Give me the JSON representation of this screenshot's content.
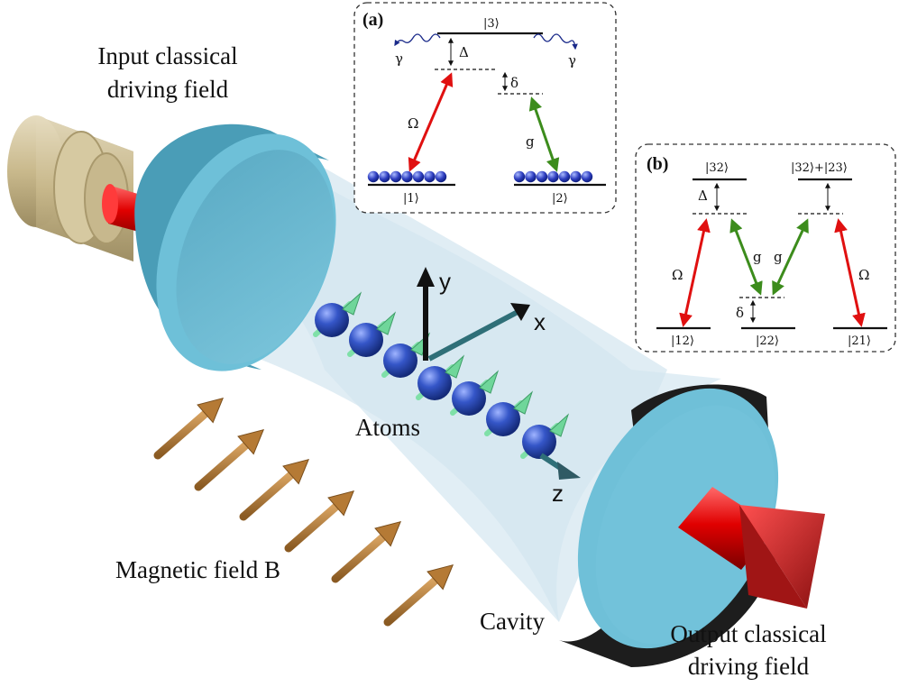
{
  "labels": {
    "input_line1": "Input classical",
    "input_line2": "driving field",
    "output_line1": "Output classical",
    "output_line2": "driving field",
    "atoms": "Atoms",
    "magnetic": "Magnetic field B",
    "cavity": "Cavity"
  },
  "axes": {
    "x": "x",
    "y": "y",
    "z": "z"
  },
  "panel_a": {
    "tag": "(a)",
    "state_top": "|3⟩",
    "state_left": "|1⟩",
    "state_right": "|2⟩",
    "decay_left": "γ",
    "decay_right": "γ",
    "detuning_big": "Δ",
    "detuning_small": "δ",
    "rabi": "Ω",
    "coupling": "g"
  },
  "panel_b": {
    "tag": "(b)",
    "state_top_left": "|32⟩",
    "state_top_right": "|32⟩+|23⟩",
    "state_bottom_left": "|12⟩",
    "state_bottom_mid": "|22⟩",
    "state_bottom_right": "|21⟩",
    "detuning_big": "Δ",
    "detuning_small": "δ",
    "rabi_left": "Ω",
    "rabi_right": "Ω",
    "coupling_left": "g",
    "coupling_right": "g"
  },
  "colors": {
    "mirror": "#6fc0d8",
    "mirror_dark": "#3e8fa8",
    "beam": "#e00000",
    "atom": "#2f4fc0",
    "spin": "#7fe0a8",
    "field_arrow": "#b07a3a",
    "laser_housing": "#cdbf97",
    "cavity_mode": "#dbeaf2",
    "omega_arrow": "#e01010",
    "g_arrow": "#3c8c1c"
  }
}
